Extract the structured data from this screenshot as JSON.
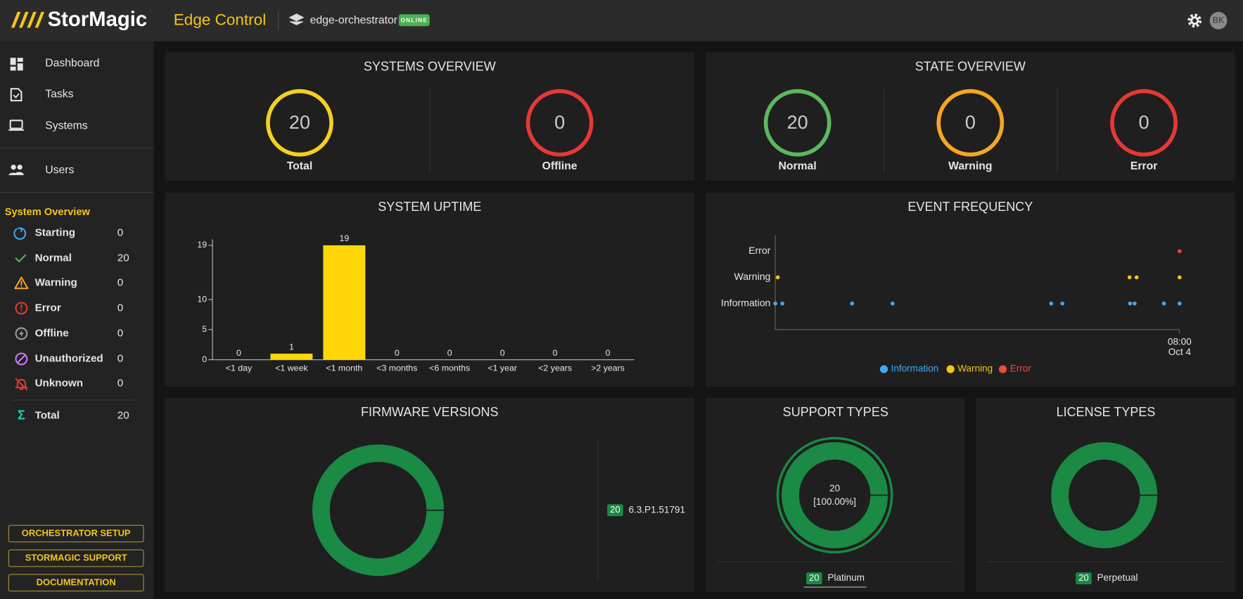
{
  "header": {
    "brand": "StorMagic",
    "app": "Edge Control",
    "orchestrator": "edge-orchestrator",
    "status": "ONLINE",
    "user": "BK"
  },
  "nav": [
    "Dashboard",
    "Tasks",
    "Systems",
    "Users"
  ],
  "system_overview": {
    "title": "System Overview",
    "items": [
      {
        "label": "Starting",
        "value": 0
      },
      {
        "label": "Normal",
        "value": 20
      },
      {
        "label": "Warning",
        "value": 0
      },
      {
        "label": "Error",
        "value": 0
      },
      {
        "label": "Offline",
        "value": 0
      },
      {
        "label": "Unauthorized",
        "value": 0
      },
      {
        "label": "Unknown",
        "value": 0
      },
      {
        "label": "Total",
        "value": 20
      }
    ]
  },
  "buttons": [
    "ORCHESTRATOR SETUP",
    "STORMAGIC SUPPORT",
    "DOCUMENTATION"
  ],
  "systems_overview": {
    "title": "SYSTEMS OVERVIEW",
    "items": [
      {
        "label": "Total",
        "value": 20,
        "color": "#f5d020"
      },
      {
        "label": "Offline",
        "value": 0,
        "color": "#e53935"
      }
    ]
  },
  "state_overview": {
    "title": "STATE OVERVIEW",
    "items": [
      {
        "label": "Normal",
        "value": 20,
        "color": "#5cb85c"
      },
      {
        "label": "Warning",
        "value": 0,
        "color": "#f5a623"
      },
      {
        "label": "Error",
        "value": 0,
        "color": "#e53935"
      }
    ]
  },
  "chart_data": [
    {
      "type": "bar",
      "title": "SYSTEM UPTIME",
      "categories": [
        "<1 day",
        "<1 week",
        "<1 month",
        "<3 months",
        "<6 months",
        "<1 year",
        "<2 years",
        ">2 years"
      ],
      "values": [
        0,
        1,
        19,
        0,
        0,
        0,
        0,
        0
      ],
      "color": "#ffd60a",
      "ylim": [
        0,
        20
      ],
      "yticks": [
        0,
        5,
        10,
        19
      ]
    },
    {
      "type": "scatter",
      "title": "EVENT FREQUENCY",
      "y_categories": [
        "Information",
        "Warning",
        "Error"
      ],
      "xlim": [
        0,
        8
      ],
      "xticks": [
        {
          "value": 8,
          "label": "08:00"
        }
      ],
      "x_date": "Oct 4",
      "series": [
        {
          "name": "Information",
          "color": "#3fa9f5",
          "x": [
            0,
            0.14,
            1.52,
            2.32,
            5.46,
            5.68,
            7.02,
            7.11,
            7.69,
            8
          ]
        },
        {
          "name": "Warning",
          "color": "#f5c518",
          "x": [
            0.05,
            7.01,
            7.15,
            8
          ]
        },
        {
          "name": "Error",
          "color": "#e74c3c",
          "x": [
            8
          ]
        }
      ]
    },
    {
      "type": "pie",
      "title": "FIRMWARE VERSIONS",
      "categories": [
        "6.3.P1.51791"
      ],
      "values": [
        20
      ],
      "color": "#1a8a45"
    },
    {
      "type": "pie",
      "title": "SUPPORT TYPES",
      "categories": [
        "Platinum"
      ],
      "values": [
        20
      ],
      "percent_labels": [
        "[100.00%]"
      ],
      "color": "#1a8a45"
    },
    {
      "type": "pie",
      "title": "LICENSE TYPES",
      "categories": [
        "Perpetual"
      ],
      "values": [
        20
      ],
      "color": "#1a8a45"
    }
  ]
}
